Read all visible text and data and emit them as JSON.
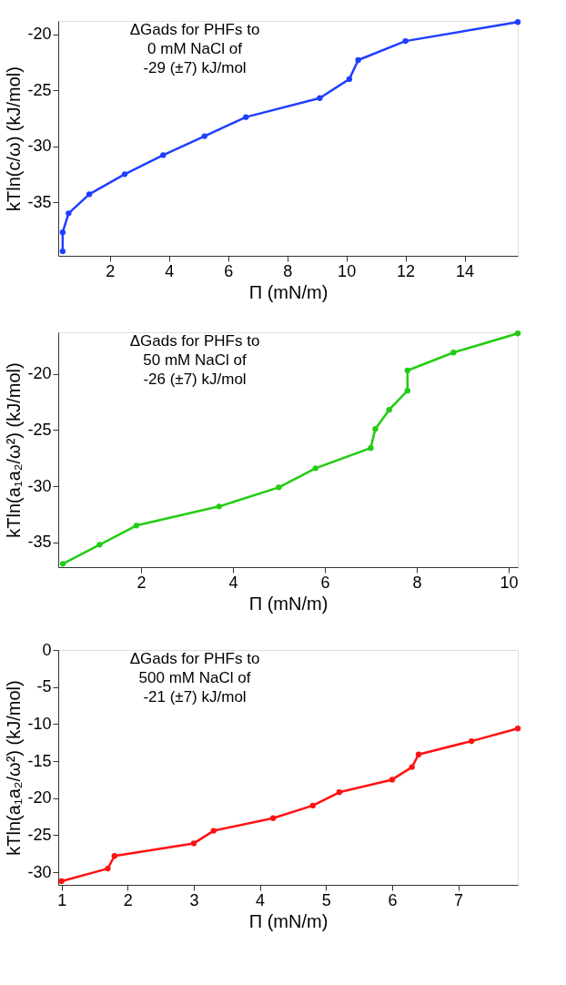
{
  "chart_data": [
    {
      "type": "line",
      "xlabel": "Π (mN/m)",
      "ylabel": "kTln(c/ω) (kJ/mol)",
      "annotations": [
        "ΔGads for PHFs to\n0 mM NaCl of\n-29 (±7) kJ/mol"
      ],
      "marker": "circle",
      "line_style": "solid",
      "grid": false,
      "xlim": [
        0.25,
        15.8
      ],
      "xticks": [
        2,
        4,
        6,
        8,
        10,
        12,
        14
      ],
      "ylim": [
        -39.8,
        -18.8
      ],
      "yticks": [
        -35,
        -30,
        -25,
        -20
      ],
      "series": [
        {
          "color": "#1f3fff",
          "x": [
            0.4,
            0.4,
            0.6,
            1.3,
            2.5,
            3.8,
            5.2,
            6.6,
            9.1,
            10.1,
            10.4,
            12.0,
            15.8
          ],
          "values": [
            -39.4,
            -37.7,
            -36.0,
            -34.3,
            -32.5,
            -30.8,
            -29.1,
            -27.4,
            -25.7,
            -24.0,
            -22.3,
            -20.6,
            -18.9
          ]
        }
      ]
    },
    {
      "type": "line",
      "xlabel": "Π (mN/m)",
      "ylabel": "kTln(a₁a₂/ω²) (kJ/mol)",
      "annotations": [
        "ΔGads for PHFs to\n50 mM NaCl of\n-26 (±7) kJ/mol"
      ],
      "marker": "circle",
      "line_style": "solid",
      "grid": false,
      "xlim": [
        0.2,
        10.2
      ],
      "xticks": [
        2,
        4,
        6,
        8,
        10
      ],
      "ylim": [
        -37.2,
        -16.3
      ],
      "yticks": [
        -35,
        -30,
        -25,
        -20
      ],
      "series": [
        {
          "color": "#22cc11",
          "x": [
            0.3,
            1.1,
            1.9,
            3.7,
            5.0,
            5.8,
            7.0,
            7.1,
            7.4,
            7.8,
            7.8,
            8.8,
            10.2
          ],
          "values": [
            -36.9,
            -35.2,
            -33.5,
            -31.8,
            -30.1,
            -28.4,
            -26.6,
            -24.9,
            -23.2,
            -21.5,
            -19.7,
            -18.1,
            -16.4
          ]
        }
      ]
    },
    {
      "type": "line",
      "xlabel": "Π (mN/m)",
      "ylabel": "kTln(a₁a₂/ω²) (kJ/mol)",
      "annotations": [
        "ΔGads for PHFs to\n500 mM NaCl of\n-21 (±7) kJ/mol"
      ],
      "marker": "circle",
      "line_style": "solid",
      "grid": false,
      "xlim": [
        0.95,
        7.9
      ],
      "xticks": [
        1,
        2,
        3,
        4,
        5,
        6,
        7
      ],
      "ylim": [
        -31.7,
        0
      ],
      "yticks": [
        -30,
        -25,
        -20,
        -15,
        -10,
        -5,
        0
      ],
      "series": [
        {
          "color": "#ff1111",
          "x": [
            1.0,
            1.7,
            1.8,
            3.0,
            3.3,
            4.2,
            4.8,
            5.2,
            6.0,
            6.3,
            6.4,
            7.2,
            7.9
          ],
          "values": [
            -31.2,
            -29.5,
            -27.8,
            -26.1,
            -24.4,
            -22.7,
            -21.0,
            -19.2,
            -17.5,
            -15.8,
            -14.1,
            -12.3,
            -10.6
          ]
        }
      ]
    }
  ]
}
